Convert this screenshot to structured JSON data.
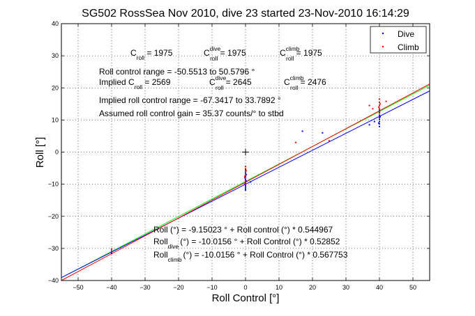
{
  "chart_data": {
    "type": "scatter",
    "title": "SG502 RossSea Nov 2010, dive 23 started 23-Nov-2010 16:14:29",
    "xlabel": "Roll Control [°]",
    "ylabel": "Roll [°]",
    "xlim": [
      -55,
      55
    ],
    "ylim": [
      -40,
      40
    ],
    "xticks": [
      -50,
      -40,
      -30,
      -20,
      -10,
      0,
      10,
      20,
      30,
      40,
      50
    ],
    "yticks": [
      -40,
      -30,
      -20,
      -10,
      0,
      10,
      20,
      30,
      40
    ],
    "xtick_labels": [
      "−50",
      "−40",
      "−30",
      "−20",
      "−10",
      "0",
      "10",
      "20",
      "30",
      "40",
      "50"
    ],
    "ytick_labels": [
      "−40",
      "−30",
      "−20",
      "−10",
      "0",
      "10",
      "20",
      "30",
      "40"
    ],
    "grid": true,
    "grid_style": "dotted",
    "legend_position": "top-right",
    "legend": [
      {
        "label": "Dive",
        "color": "#0000ff"
      },
      {
        "label": "Climb",
        "color": "#ff0000"
      }
    ],
    "crosshair": [
      0,
      0
    ],
    "series": [
      {
        "name": "Dive",
        "color": "#0000ff",
        "points": [
          [
            0,
            -5.5
          ],
          [
            0,
            -6.5
          ],
          [
            0,
            -7.5
          ],
          [
            0,
            -8.5
          ],
          [
            0,
            -9.2
          ],
          [
            0,
            -9.8
          ],
          [
            0,
            -10.3
          ],
          [
            0,
            -10.8
          ],
          [
            0,
            -11.3
          ],
          [
            0,
            -11.8
          ],
          [
            0.2,
            -7.0
          ],
          [
            0.2,
            -9.0
          ],
          [
            -0.2,
            -10.0
          ],
          [
            -0.2,
            -8.0
          ],
          [
            1.5,
            -9.3
          ],
          [
            40,
            8.0
          ],
          [
            40,
            8.8
          ],
          [
            40,
            9.5
          ],
          [
            40,
            10.2
          ],
          [
            40,
            10.8
          ],
          [
            40,
            11.5
          ],
          [
            40,
            12.2
          ],
          [
            40,
            13.0
          ],
          [
            39.8,
            9.0
          ],
          [
            40.2,
            11.0
          ],
          [
            38.5,
            9.5
          ],
          [
            37,
            8.5
          ],
          [
            17,
            6.5
          ],
          [
            23,
            6.0
          ],
          [
            -40,
            -30.8
          ],
          [
            -40,
            -31.5
          ]
        ]
      },
      {
        "name": "Climb",
        "color": "#ff0000",
        "points": [
          [
            0,
            -4.5
          ],
          [
            0,
            -5.2
          ],
          [
            0,
            -6.0
          ],
          [
            0,
            -7.0
          ],
          [
            0,
            -8.0
          ],
          [
            0,
            -9.0
          ],
          [
            0,
            -10.0
          ],
          [
            0.2,
            -5.8
          ],
          [
            -0.2,
            -7.5
          ],
          [
            40,
            12.5
          ],
          [
            40,
            13.5
          ],
          [
            40,
            14.5
          ],
          [
            40,
            15.5
          ],
          [
            40,
            16.5
          ],
          [
            39.8,
            14.0
          ],
          [
            40.2,
            15.0
          ],
          [
            37,
            14.5
          ],
          [
            38,
            13.5
          ],
          [
            42,
            15.8
          ],
          [
            -40,
            -30.2
          ],
          [
            -40,
            -31.0
          ],
          [
            25,
            3.5
          ],
          [
            15,
            3.0
          ]
        ]
      }
    ],
    "fit_lines": [
      {
        "name": "fit",
        "color": "#00ff00",
        "intercept": -9.15023,
        "slope": 0.544967
      },
      {
        "name": "fit_dive",
        "color": "#0000ff",
        "intercept": -10.0156,
        "slope": 0.52852
      },
      {
        "name": "fit_climb",
        "color": "#ff0000",
        "intercept": -10.0156,
        "slope": 0.567753
      }
    ],
    "annotations": {
      "croll": {
        "c": "C",
        "sub_roll": "roll",
        "eq1": " = 1975",
        "sup_dive": "dive",
        "eq2": " = 1975",
        "sup_climb": "climb",
        "eq3": " = 1975"
      },
      "range": "Roll control range = -50.5513 to 50.5796 °",
      "implied": {
        "prefix": "Implied C",
        "sub_roll": "roll",
        "eq1": " = 2569",
        "c": "C",
        "sup_dive": "dive",
        "eq2": " = 2645",
        "sup_climb": "climb",
        "eq3": " = 2476"
      },
      "implied_range": "Implied roll control range = -67.3417 to 33.7892 °",
      "gain": "Assumed roll control gain = 35.37 counts/° to stbd",
      "fit1": "Roll (°) = -9.15023 ° + Roll control (°) * 0.544967",
      "fit2_prefix": "Roll",
      "fit2_sub": "dive",
      "fit2_rest": "(°) = -10.0156 ° + Roll Control (°) * 0.52852",
      "fit3_prefix": "Roll",
      "fit3_sub": "climb",
      "fit3_rest": "(°) = -10.0156 ° + Roll Control (°) * 0.567753"
    }
  }
}
